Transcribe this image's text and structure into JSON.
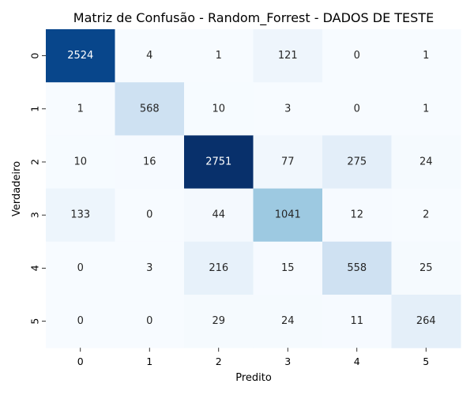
{
  "chart_data": {
    "type": "heatmap",
    "title": "Matriz de Confusão - Random_Forrest - DADOS DE TESTE",
    "xlabel": "Predito",
    "ylabel": "Verdadeiro",
    "x_categories": [
      "0",
      "1",
      "2",
      "3",
      "4",
      "5"
    ],
    "y_categories": [
      "0",
      "1",
      "2",
      "3",
      "4",
      "5"
    ],
    "values": [
      [
        2524,
        4,
        1,
        121,
        0,
        1
      ],
      [
        1,
        568,
        10,
        3,
        0,
        1
      ],
      [
        10,
        16,
        2751,
        77,
        275,
        24
      ],
      [
        133,
        0,
        44,
        1041,
        12,
        2
      ],
      [
        0,
        3,
        216,
        15,
        558,
        25
      ],
      [
        0,
        0,
        29,
        24,
        11,
        264
      ]
    ],
    "colormap": "Blues",
    "color_min": "#f7fbff",
    "color_max": "#08306b",
    "colorbar": false,
    "grid": false
  }
}
